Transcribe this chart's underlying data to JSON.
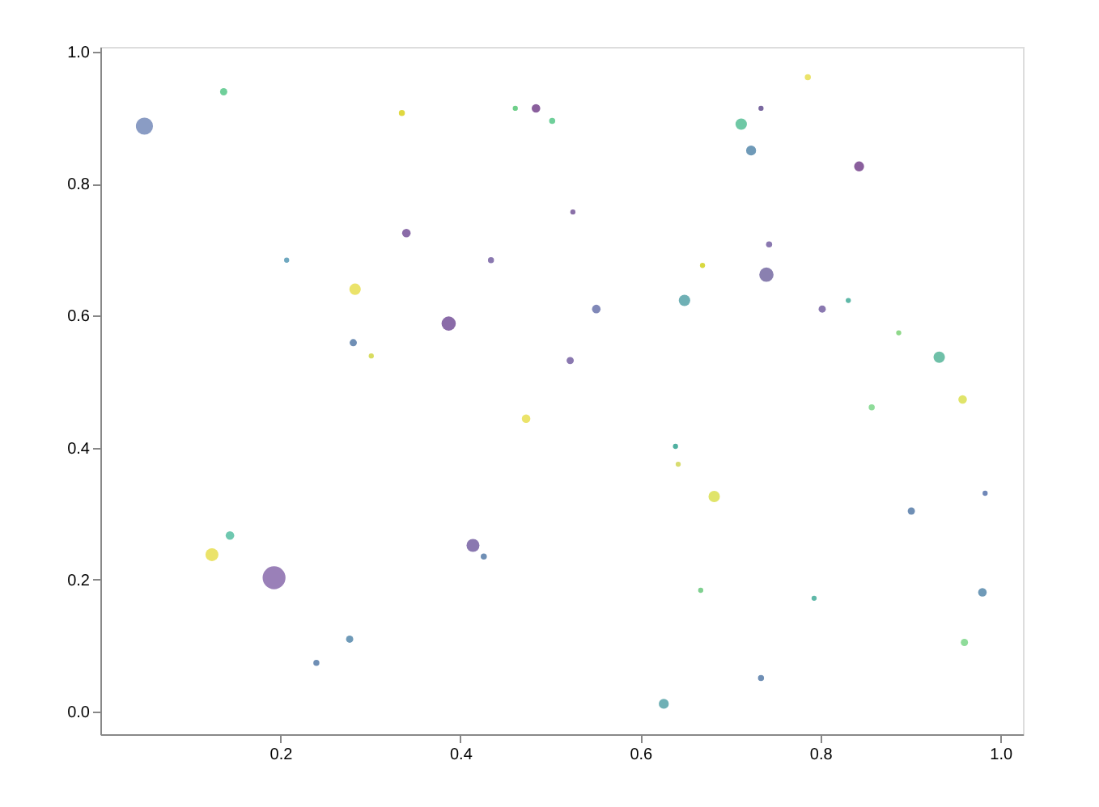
{
  "chart_data": {
    "type": "bubble",
    "x": [
      0.049,
      0.137,
      0.335,
      0.34,
      0.207,
      0.283,
      0.281,
      0.301,
      0.461,
      0.484,
      0.502,
      0.525,
      0.434,
      0.669,
      0.551,
      0.387,
      0.522,
      0.649,
      0.786,
      0.734,
      0.712,
      0.723,
      0.843,
      0.743,
      0.74,
      0.802,
      0.831,
      0.887,
      0.932,
      0.958,
      0.144,
      0.124,
      0.193,
      0.277,
      0.24,
      0.473,
      0.639,
      0.642,
      0.682,
      0.414,
      0.426,
      0.667,
      0.626,
      0.857,
      0.983,
      0.901,
      0.98,
      0.793,
      0.96,
      0.734
    ],
    "values": [
      0.887,
      0.939,
      0.907,
      0.725,
      0.684,
      0.64,
      0.559,
      0.539,
      0.914,
      0.914,
      0.895,
      0.757,
      0.684,
      0.676,
      0.61,
      0.588,
      0.532,
      0.623,
      0.961,
      0.914,
      0.89,
      0.85,
      0.826,
      0.708,
      0.662,
      0.61,
      0.623,
      0.574,
      0.537,
      0.473,
      0.267,
      0.238,
      0.203,
      0.11,
      0.074,
      0.444,
      0.402,
      0.375,
      0.326,
      0.252,
      0.235,
      0.184,
      0.012,
      0.461,
      0.331,
      0.304,
      0.181,
      0.172,
      0.105,
      0.051
    ],
    "sizes": [
      0.56,
      0.1,
      0.07,
      0.14,
      0.05,
      0.25,
      0.1,
      0.05,
      0.05,
      0.14,
      0.07,
      0.05,
      0.07,
      0.05,
      0.14,
      0.39,
      0.1,
      0.25,
      0.07,
      0.05,
      0.25,
      0.19,
      0.19,
      0.07,
      0.39,
      0.1,
      0.05,
      0.05,
      0.25,
      0.14,
      0.14,
      0.32,
      1.0,
      0.1,
      0.07,
      0.14,
      0.05,
      0.05,
      0.25,
      0.32,
      0.07,
      0.05,
      0.19,
      0.07,
      0.05,
      0.1,
      0.14,
      0.05,
      0.1,
      0.07
    ],
    "colors": [
      "#8a9cc4",
      "#6fcf9a",
      "#e0d840",
      "#8a6ba8",
      "#6fa8c0",
      "#ebe36a",
      "#6f8fb5",
      "#d8dc60",
      "#6fcf8a",
      "#8a5f9d",
      "#6fcf9a",
      "#8a70a8",
      "#8a78b0",
      "#d8d840",
      "#8088b8",
      "#8a6ba8",
      "#8a78b0",
      "#6fb0b5",
      "#ebe36a",
      "#7a68a0",
      "#6fc8a5",
      "#6f9ab8",
      "#8a5f9d",
      "#8a78b0",
      "#8a80b0",
      "#8a78b0",
      "#5fb8a8",
      "#8fd88a",
      "#6fc0a8",
      "#e0e46a",
      "#6fc8b0",
      "#ebe36a",
      "#9a80b8",
      "#6f9ab8",
      "#6f8fb5",
      "#ebe36a",
      "#4fb0a0",
      "#d8dc70",
      "#e0e46a",
      "#8a78b0",
      "#6f8fb5",
      "#7fd090",
      "#6fb0b5",
      "#8fdc9a",
      "#7088b8",
      "#6f8fb5",
      "#6f9ab8",
      "#5fb8a8",
      "#8fdc9a",
      "#6f8fb5"
    ],
    "xlim": [
      0.0,
      1.025
    ],
    "ylim": [
      -0.034,
      1.007
    ],
    "xticks": [
      0.2,
      0.4,
      0.6,
      0.8,
      {
        "value": 1.0,
        "label": "1.0"
      }
    ],
    "yticks": [
      {
        "value": 0.0,
        "label": "0.0"
      },
      0.2,
      0.4,
      0.6,
      0.8,
      {
        "value": 1.0,
        "label": "1.0"
      }
    ],
    "grid": false
  }
}
